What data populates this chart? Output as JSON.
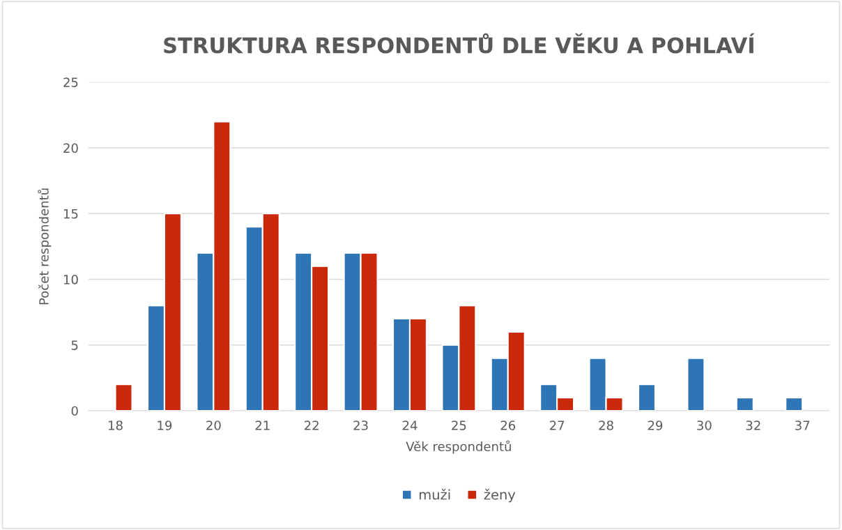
{
  "chart_data": {
    "type": "bar",
    "title": "STRUKTURA RESPONDENTŮ DLE VĚKU A POHLAVÍ",
    "xlabel": "Věk respondentů",
    "ylabel": "Počet respondentů",
    "categories": [
      "18",
      "19",
      "20",
      "21",
      "22",
      "23",
      "24",
      "25",
      "26",
      "27",
      "28",
      "29",
      "30",
      "32",
      "37"
    ],
    "series": [
      {
        "name": "muži",
        "color": "#2e75b6",
        "values": [
          null,
          8,
          12,
          14,
          12,
          12,
          7,
          5,
          4,
          2,
          4,
          2,
          4,
          1,
          1
        ]
      },
      {
        "name": "ženy",
        "color": "#c9280a",
        "values": [
          2,
          15,
          22,
          15,
          11,
          12,
          7,
          8,
          6,
          1,
          1,
          null,
          null,
          null,
          null
        ]
      }
    ],
    "ylim": [
      0,
      25
    ],
    "yticks": [
      0,
      5,
      10,
      15,
      20,
      25
    ],
    "grid": "y",
    "legend": "bottom"
  }
}
